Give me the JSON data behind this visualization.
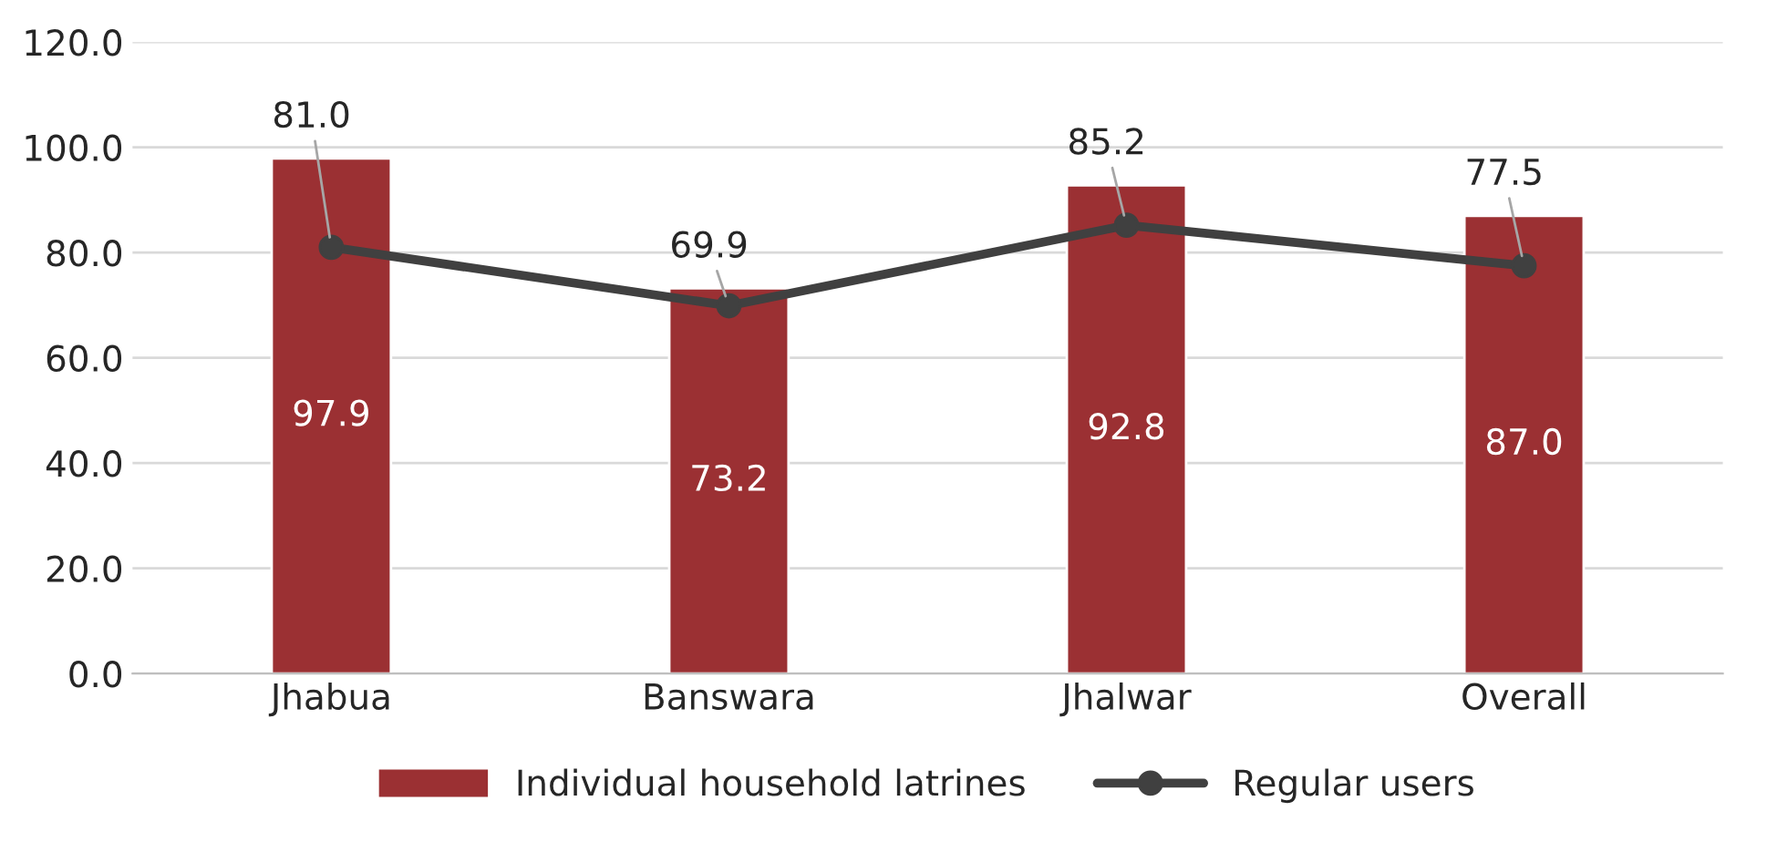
{
  "chart_data": {
    "type": "bar",
    "categories": [
      "Jhabua",
      "Banswara",
      "Jhalwar",
      "Overall"
    ],
    "series": [
      {
        "name": "Individual household latrines",
        "color": "#9b3033",
        "values": [
          97.9,
          73.2,
          92.8,
          87.0
        ],
        "value_labels": [
          "97.9",
          "73.2",
          "92.8",
          "87.0"
        ]
      },
      {
        "name": "Regular users",
        "type": "line",
        "color": "#404040",
        "values": [
          81.0,
          69.9,
          85.2,
          77.5
        ],
        "value_labels": [
          "81.0",
          "69.9",
          "85.2",
          "77.5"
        ],
        "marker": "circle"
      }
    ],
    "ylim": [
      0,
      120
    ],
    "yticks": [
      {
        "value": 0,
        "label": "0.0"
      },
      {
        "value": 20,
        "label": "20.0"
      },
      {
        "value": 40,
        "label": "40.0"
      },
      {
        "value": 60,
        "label": "60.0"
      },
      {
        "value": 80,
        "label": "80.0"
      },
      {
        "value": 100,
        "label": "100.0"
      },
      {
        "value": 120,
        "label": "120.0"
      }
    ],
    "grid": "y",
    "legend": "bottom"
  }
}
